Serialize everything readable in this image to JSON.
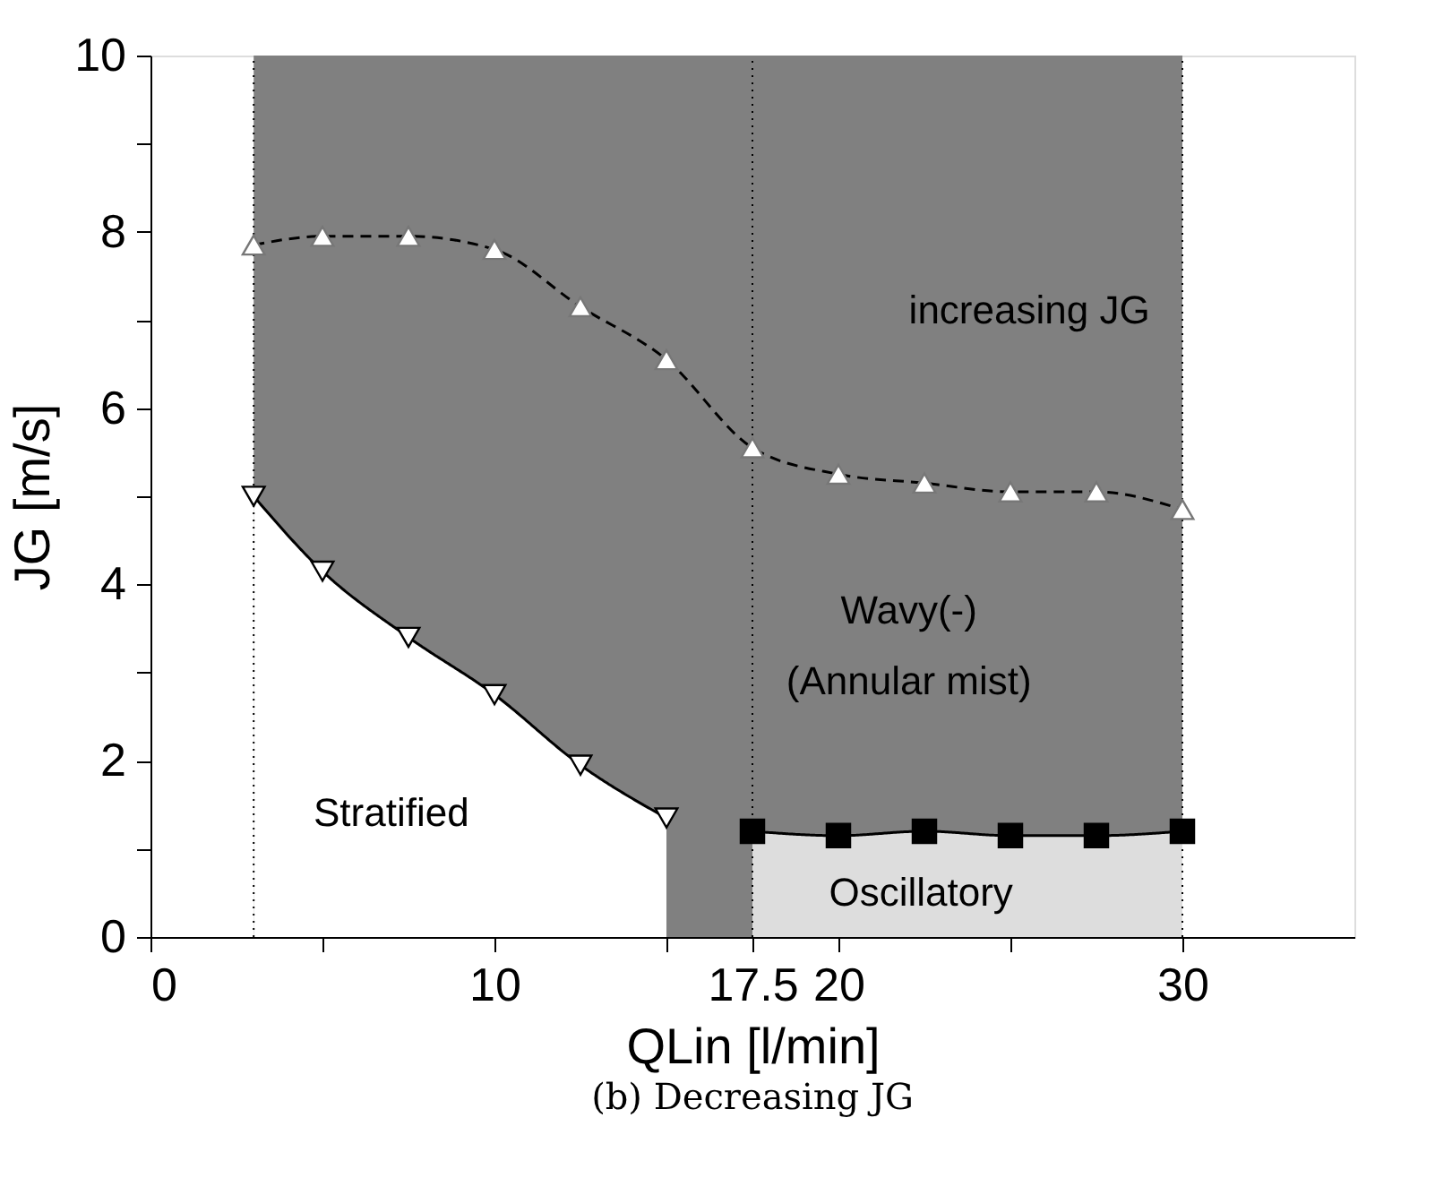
{
  "chart_data": {
    "type": "line",
    "title": "(b) Decreasing JG",
    "xlabel": "QLin [l/min]",
    "ylabel": "JG [m/s]",
    "xlim": [
      0,
      35
    ],
    "ylim": [
      0,
      10
    ],
    "xticks": [
      0,
      {
        "value": 5,
        "label": null
      },
      10,
      {
        "value": 15,
        "label": null
      },
      17.5,
      20,
      {
        "value": 25,
        "label": null
      },
      30
    ],
    "yticks": [
      0,
      {
        "value": 1,
        "label": null
      },
      2,
      {
        "value": 3,
        "label": null
      },
      4,
      {
        "value": 5,
        "label": null
      },
      6,
      {
        "value": 7,
        "label": null
      },
      8,
      {
        "value": 9,
        "label": null
      },
      10
    ],
    "grid": false,
    "bands": [
      {
        "axis": "x",
        "from": 3,
        "to": 30,
        "color": "#808080"
      }
    ],
    "ref_lines": [
      {
        "axis": "x",
        "value": 3,
        "line_style": "dotted"
      },
      {
        "axis": "x",
        "value": 17.5,
        "line_style": "dotted"
      },
      {
        "axis": "x",
        "value": 30,
        "line_style": "dotted"
      }
    ],
    "series": [
      {
        "type": "area",
        "color": "#ffffff",
        "marker": "triangle-down",
        "line_style": "solid",
        "x": [
          3,
          5,
          7.5,
          10,
          12.5,
          15
        ],
        "values": [
          5.0,
          4.15,
          3.4,
          2.75,
          1.95,
          1.35
        ]
      },
      {
        "type": "area",
        "color": "#dddddd",
        "marker": "square",
        "line_style": "solid",
        "x": [
          17.5,
          20,
          22.5,
          25,
          27.5,
          30
        ],
        "values": [
          1.2,
          1.15,
          1.2,
          1.15,
          1.15,
          1.2
        ]
      },
      {
        "color": "#000000",
        "marker": "triangle",
        "line_style": "dashed",
        "x": [
          3,
          5,
          7.5,
          10,
          12.5,
          15,
          17.5,
          20,
          22.5,
          25,
          27.5,
          30
        ],
        "values": [
          7.85,
          7.95,
          7.95,
          7.8,
          7.15,
          6.55,
          5.55,
          5.25,
          5.15,
          5.05,
          5.05,
          4.85
        ]
      }
    ],
    "annotations": [
      "increasing JG",
      "Wavy(-)",
      "(Annular mist)",
      "Stratified",
      "Oscillatory"
    ]
  }
}
